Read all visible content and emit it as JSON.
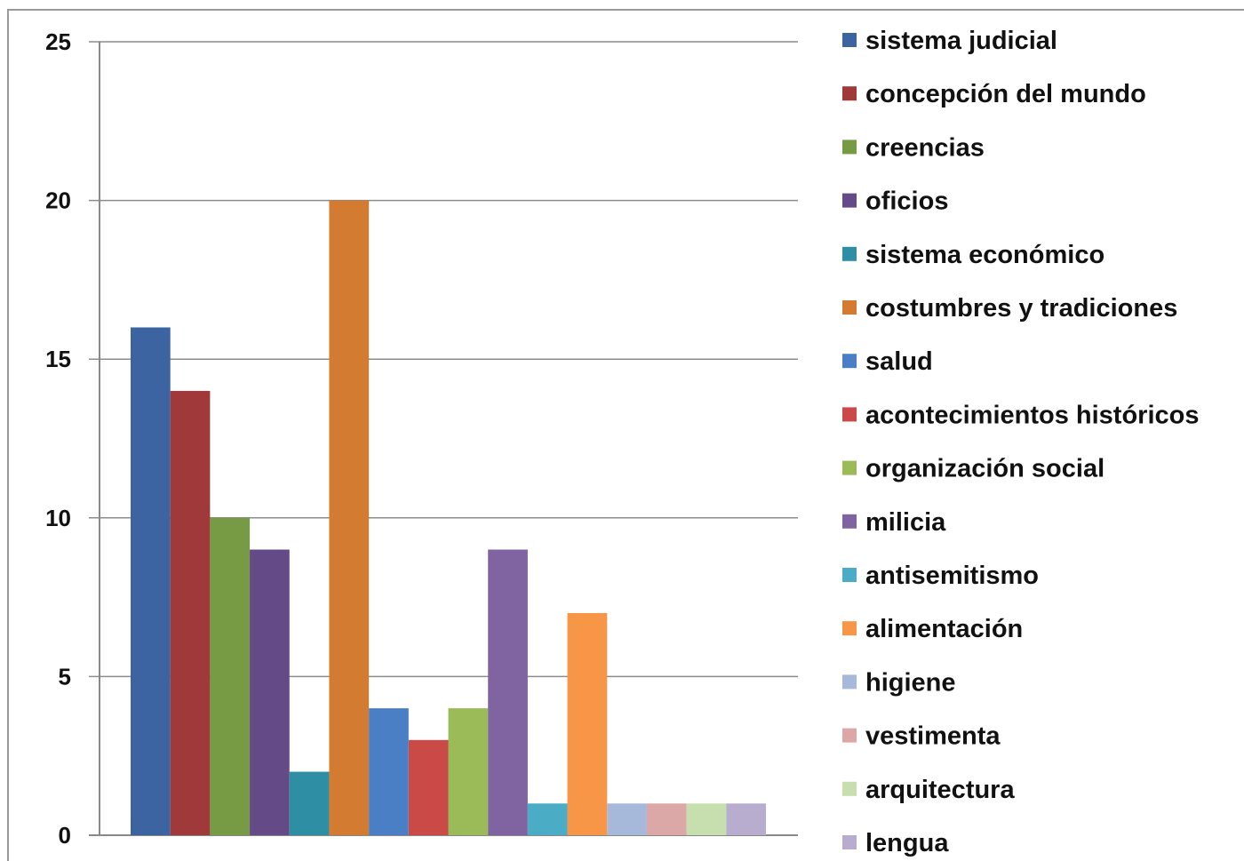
{
  "header": {
    "clipped_title_fragment": ""
  },
  "chart_data": {
    "type": "bar",
    "title": "",
    "xlabel": "",
    "ylabel": "",
    "ylim": [
      0,
      25
    ],
    "yticks": [
      0,
      5,
      10,
      15,
      20,
      25
    ],
    "grid": "horizontal",
    "legend_position": "right",
    "categories": [
      "sistema judicial",
      "concepción del mundo",
      "creencias",
      "oficios",
      "sistema económico",
      "costumbres y tradiciones",
      "salud",
      "acontecimientos históricos",
      "organización social",
      "milicia",
      "antisemitismo",
      "alimentación",
      "higiene",
      "vestimenta",
      "arquitectura",
      "lengua"
    ],
    "values": [
      16,
      14,
      10,
      9,
      2,
      20,
      4,
      3,
      4,
      9,
      1,
      7,
      1,
      1,
      1,
      1
    ],
    "colors": [
      "#3B64A1",
      "#A03A3A",
      "#779A45",
      "#654A88",
      "#2E8FA4",
      "#D27B31",
      "#4A7FC5",
      "#C94A47",
      "#9BBB58",
      "#8064A2",
      "#4BACC6",
      "#F79646",
      "#A7B9DA",
      "#DBA7A7",
      "#C7DEAE",
      "#B8ADCF"
    ]
  }
}
